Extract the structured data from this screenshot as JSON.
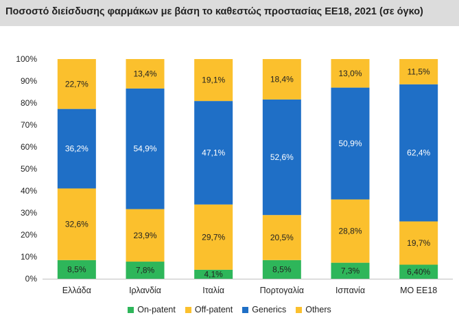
{
  "header": {
    "title": "Ποσοστό διείσδυσης φαρμάκων με βάση το καθεστώς προστασίας ΕΕ18, 2021 (σε όγκο)"
  },
  "chart_data": {
    "type": "bar",
    "stacked": true,
    "title": "Ποσοστό διείσδυσης φαρμάκων με βάση το καθεστώς προστασίας ΕΕ18, 2021 (σε όγκο)",
    "categories": [
      "Ελλάδα",
      "Ιρλανδία",
      "Ιταλία",
      "Πορτογαλία",
      "Ισπανία",
      "ΜΟ ΕΕ18"
    ],
    "y_ticks": [
      "0%",
      "10%",
      "20%",
      "30%",
      "40%",
      "50%",
      "60%",
      "70%",
      "80%",
      "90%",
      "100%"
    ],
    "ylim": [
      0,
      100
    ],
    "grid": false,
    "legend_position": "bottom",
    "series": [
      {
        "name": "On-patent",
        "color": "#2eb65a",
        "values": [
          8.5,
          7.8,
          4.1,
          8.5,
          7.3,
          6.4
        ],
        "labels": [
          "8,5%",
          "7,8%",
          "4,1%",
          "8,5%",
          "7,3%",
          "6,40%"
        ]
      },
      {
        "name": "Off-patent",
        "color": "#fbc02d",
        "values": [
          32.6,
          23.9,
          29.7,
          20.5,
          28.8,
          19.7
        ],
        "labels": [
          "32,6%",
          "23,9%",
          "29,7%",
          "20,5%",
          "28,8%",
          "19,7%"
        ]
      },
      {
        "name": "Generics",
        "color": "#1f6fc6",
        "values": [
          36.2,
          54.9,
          47.1,
          52.6,
          50.9,
          62.4
        ],
        "labels": [
          "36,2%",
          "54,9%",
          "47,1%",
          "52,6%",
          "50,9%",
          "62,4%"
        ]
      },
      {
        "name": "Others",
        "color": "#fbc02d",
        "values": [
          22.7,
          13.4,
          19.1,
          18.4,
          13.0,
          11.5
        ],
        "labels": [
          "22,7%",
          "13,4%",
          "19,1%",
          "18,4%",
          "13,0%",
          "11,5%"
        ]
      }
    ]
  },
  "legend": {
    "items": [
      {
        "label": "On-patent",
        "color": "#2eb65a"
      },
      {
        "label": "Off-patent",
        "color": "#fbc02d"
      },
      {
        "label": "Generics",
        "color": "#1f6fc6"
      },
      {
        "label": "Others",
        "color": "#fbc02d"
      }
    ]
  }
}
